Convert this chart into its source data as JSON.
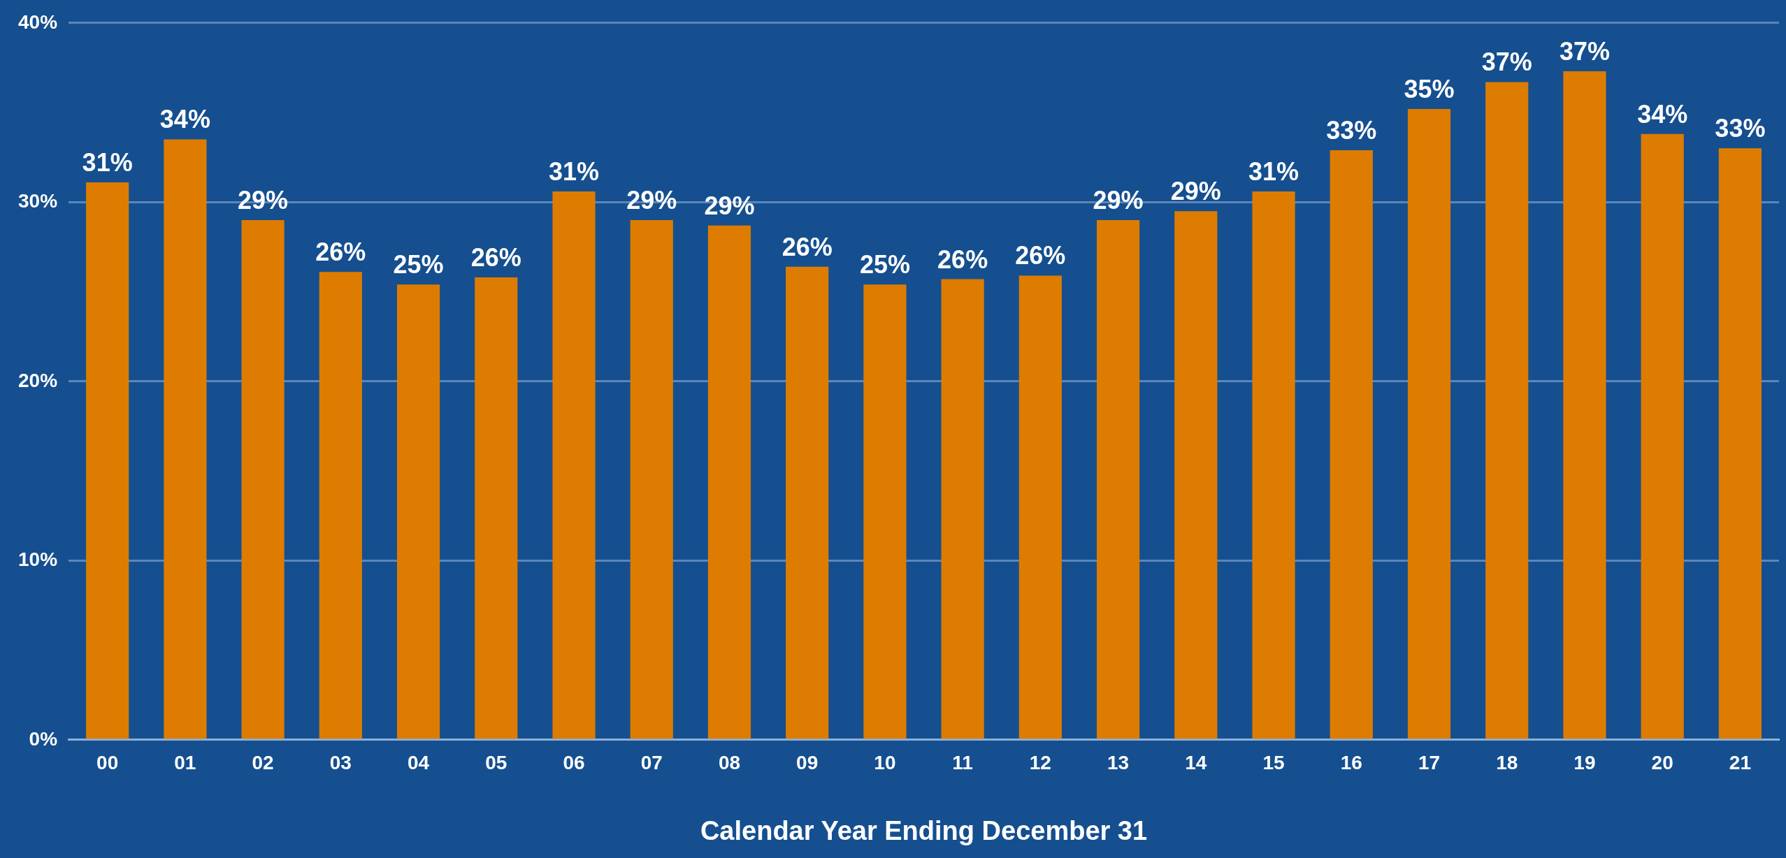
{
  "chart_data": {
    "type": "bar",
    "xlabel": "Calendar Year Ending December 31",
    "categories": [
      "00",
      "01",
      "02",
      "03",
      "04",
      "05",
      "06",
      "07",
      "08",
      "09",
      "10",
      "11",
      "12",
      "13",
      "14",
      "15",
      "16",
      "17",
      "18",
      "19",
      "20",
      "21"
    ],
    "values": [
      31.1,
      33.5,
      29.0,
      26.1,
      25.4,
      25.8,
      30.6,
      29.0,
      28.7,
      26.4,
      25.4,
      25.7,
      25.9,
      29.0,
      29.5,
      30.6,
      32.9,
      35.2,
      36.7,
      37.3,
      33.8,
      33.0
    ],
    "value_labels": [
      "31%",
      "34%",
      "29%",
      "26%",
      "25%",
      "26%",
      "31%",
      "29%",
      "29%",
      "26%",
      "25%",
      "26%",
      "26%",
      "29%",
      "29%",
      "31%",
      "33%",
      "35%",
      "37%",
      "37%",
      "34%",
      "33%"
    ],
    "color": "#dd7c00",
    "ylim": [
      0,
      40
    ],
    "yticks": [
      {
        "value": 0,
        "label": "0%"
      },
      {
        "value": 10,
        "label": "10%"
      },
      {
        "value": 20,
        "label": "20%"
      },
      {
        "value": 30,
        "label": "30%"
      },
      {
        "value": 40,
        "label": "40%"
      }
    ],
    "grid": "y",
    "legend": false
  }
}
